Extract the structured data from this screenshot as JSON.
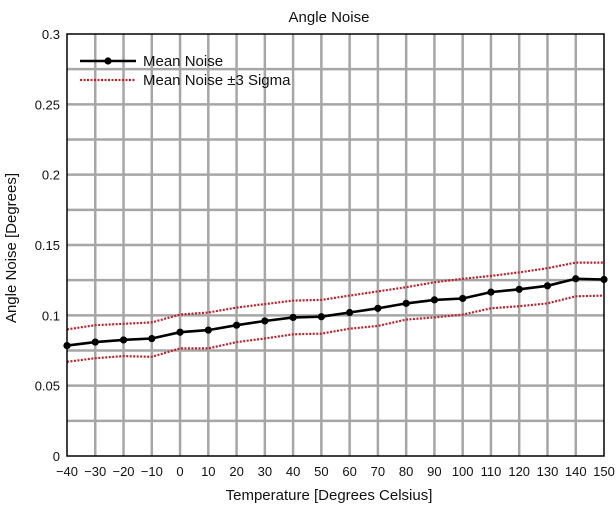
{
  "chart_data": {
    "type": "line",
    "title": "Angle Noise",
    "xlabel": "Temperature [Degrees Celsius]",
    "ylabel": "Angle Noise [Degrees]",
    "x": [
      -40,
      -30,
      -20,
      -10,
      0,
      10,
      20,
      30,
      40,
      50,
      60,
      70,
      80,
      90,
      100,
      110,
      120,
      130,
      140,
      150
    ],
    "x_tick_labels": [
      "−40",
      "−30",
      "−20",
      "−10",
      "0",
      "10",
      "20",
      "30",
      "40",
      "50",
      "60",
      "70",
      "80",
      "90",
      "100",
      "110",
      "120",
      "130",
      "140",
      "150"
    ],
    "xlim": [
      -40,
      150
    ],
    "ylim": [
      0,
      0.3
    ],
    "y_ticks": [
      0,
      0.05,
      0.1,
      0.15,
      0.2,
      0.25,
      0.3
    ],
    "y_tick_labels": [
      "0",
      "0.05",
      "0.1",
      "0.15",
      "0.2",
      "0.25",
      "0.3"
    ],
    "grid": true,
    "legend_position": "top-left",
    "series": [
      {
        "name": "Mean Noise",
        "style": "solid-with-markers",
        "color": "#000000",
        "values": [
          0.0785,
          0.081,
          0.0825,
          0.0835,
          0.088,
          0.0895,
          0.093,
          0.096,
          0.0985,
          0.099,
          0.102,
          0.105,
          0.1085,
          0.111,
          0.112,
          0.1165,
          0.1185,
          0.121,
          0.126,
          0.1255
        ]
      },
      {
        "name": "Mean Noise ±3 Sigma",
        "style": "dotted",
        "color": "#c0202a",
        "upper": [
          0.09,
          0.093,
          0.094,
          0.095,
          0.1005,
          0.102,
          0.1055,
          0.108,
          0.1105,
          0.111,
          0.114,
          0.117,
          0.12,
          0.1235,
          0.126,
          0.128,
          0.1305,
          0.1335,
          0.1375,
          0.1375
        ],
        "lower": [
          0.067,
          0.0695,
          0.071,
          0.0705,
          0.0765,
          0.0765,
          0.081,
          0.0835,
          0.0865,
          0.087,
          0.0905,
          0.0925,
          0.097,
          0.0985,
          0.1005,
          0.105,
          0.1065,
          0.1085,
          0.1135,
          0.114
        ]
      }
    ]
  }
}
